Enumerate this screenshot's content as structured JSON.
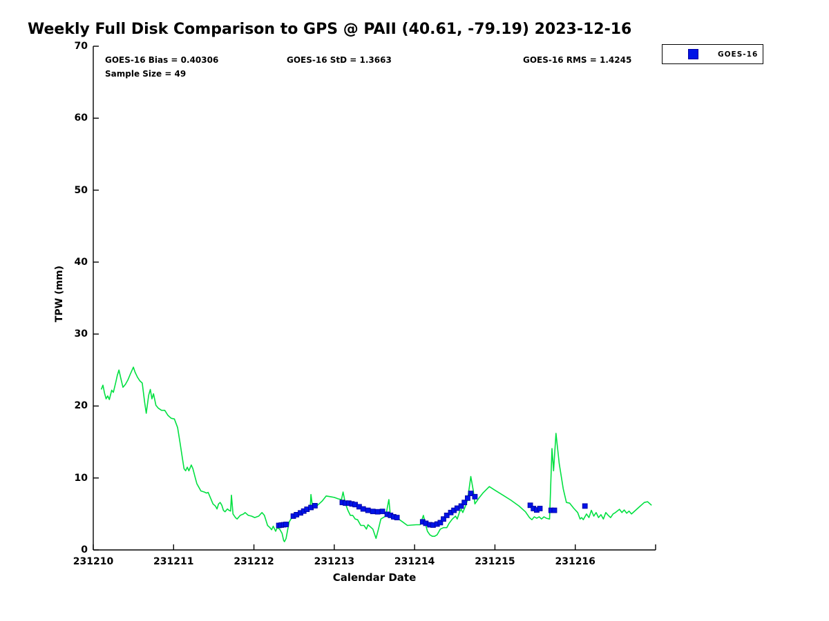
{
  "title": "Weekly Full Disk Comparison to GPS @ PAII (40.61, -79.19) 2023-12-16",
  "stats": {
    "bias": "GOES-16 Bias = 0.40306",
    "std": "GOES-16 StD = 1.3663",
    "rms": "GOES-16 RMS = 1.4245",
    "sample": "Sample Size = 49"
  },
  "legend": {
    "label": "GOES-16"
  },
  "colors": {
    "line": "#00e040",
    "marker": "#0013e6",
    "marker_edge": "#0000a0",
    "axis": "#000000"
  },
  "chart_data": {
    "type": "line",
    "title": "Weekly Full Disk Comparison to GPS @ PAII (40.61, -79.19) 2023-12-16",
    "xlabel": "Calendar Date",
    "ylabel": "TPW (mm)",
    "x_unit": "days since 231210",
    "xlim": [
      0,
      7
    ],
    "ylim": [
      0,
      70
    ],
    "y_ticks": [
      0,
      10,
      20,
      30,
      40,
      50,
      60,
      70
    ],
    "x_ticks": [
      0,
      1,
      2,
      3,
      4,
      5,
      6,
      7
    ],
    "x_tick_labels": [
      "231210",
      "231211",
      "231212",
      "231213",
      "231214",
      "231215",
      "231216",
      ""
    ],
    "grid": false,
    "legend_position": "top-right",
    "series": [
      {
        "name": "GPS",
        "style": "line",
        "points": [
          [
            0.1,
            22.3
          ],
          [
            0.12,
            22.9
          ],
          [
            0.14,
            21.8
          ],
          [
            0.16,
            21.0
          ],
          [
            0.18,
            21.4
          ],
          [
            0.2,
            20.9
          ],
          [
            0.23,
            22.2
          ],
          [
            0.25,
            21.9
          ],
          [
            0.28,
            23.3
          ],
          [
            0.3,
            24.3
          ],
          [
            0.32,
            25.0
          ],
          [
            0.34,
            24.0
          ],
          [
            0.37,
            22.6
          ],
          [
            0.4,
            23.0
          ],
          [
            0.43,
            23.6
          ],
          [
            0.46,
            24.4
          ],
          [
            0.5,
            25.4
          ],
          [
            0.52,
            24.7
          ],
          [
            0.55,
            24.0
          ],
          [
            0.58,
            23.5
          ],
          [
            0.61,
            23.2
          ],
          [
            0.64,
            20.5
          ],
          [
            0.66,
            19.0
          ],
          [
            0.69,
            21.5
          ],
          [
            0.71,
            22.3
          ],
          [
            0.73,
            21.0
          ],
          [
            0.75,
            21.7
          ],
          [
            0.78,
            20.1
          ],
          [
            0.81,
            19.7
          ],
          [
            0.85,
            19.4
          ],
          [
            0.89,
            19.4
          ],
          [
            0.93,
            18.7
          ],
          [
            0.97,
            18.3
          ],
          [
            1.01,
            18.2
          ],
          [
            1.05,
            17.0
          ],
          [
            1.08,
            14.9
          ],
          [
            1.11,
            12.7
          ],
          [
            1.13,
            11.3
          ],
          [
            1.15,
            11.0
          ],
          [
            1.17,
            11.5
          ],
          [
            1.19,
            11.0
          ],
          [
            1.22,
            11.8
          ],
          [
            1.24,
            11.3
          ],
          [
            1.27,
            10.0
          ],
          [
            1.29,
            9.2
          ],
          [
            1.31,
            8.8
          ],
          [
            1.34,
            8.2
          ],
          [
            1.38,
            8.05
          ],
          [
            1.41,
            7.9
          ],
          [
            1.43,
            8.0
          ],
          [
            1.46,
            7.2
          ],
          [
            1.49,
            6.4
          ],
          [
            1.52,
            6.1
          ],
          [
            1.54,
            5.7
          ],
          [
            1.56,
            6.4
          ],
          [
            1.58,
            6.6
          ],
          [
            1.6,
            6.2
          ],
          [
            1.62,
            5.5
          ],
          [
            1.64,
            5.3
          ],
          [
            1.67,
            5.7
          ],
          [
            1.69,
            5.5
          ],
          [
            1.71,
            5.4
          ],
          [
            1.72,
            7.6
          ],
          [
            1.74,
            5.0
          ],
          [
            1.77,
            4.5
          ],
          [
            1.79,
            4.3
          ],
          [
            1.83,
            4.8
          ],
          [
            1.87,
            5.0
          ],
          [
            1.89,
            5.2
          ],
          [
            1.93,
            4.8
          ],
          [
            1.97,
            4.7
          ],
          [
            2.01,
            4.5
          ],
          [
            2.06,
            4.7
          ],
          [
            2.1,
            5.2
          ],
          [
            2.13,
            4.8
          ],
          [
            2.17,
            3.4
          ],
          [
            2.2,
            3.1
          ],
          [
            2.22,
            2.8
          ],
          [
            2.24,
            3.3
          ],
          [
            2.27,
            2.6
          ],
          [
            2.29,
            3.1
          ],
          [
            2.32,
            2.9
          ],
          [
            2.35,
            2.3
          ],
          [
            2.37,
            1.3
          ],
          [
            2.38,
            1.15
          ],
          [
            2.4,
            1.6
          ],
          [
            2.42,
            2.8
          ],
          [
            2.44,
            3.9
          ],
          [
            2.46,
            4.3
          ],
          [
            2.49,
            4.6
          ],
          [
            2.53,
            4.8
          ],
          [
            2.57,
            5.2
          ],
          [
            2.6,
            5.3
          ],
          [
            2.63,
            5.7
          ],
          [
            2.66,
            5.8
          ],
          [
            2.68,
            5.9
          ],
          [
            2.7,
            5.7
          ],
          [
            2.71,
            7.7
          ],
          [
            2.73,
            5.9
          ],
          [
            2.75,
            6.2
          ],
          [
            2.78,
            6.1
          ],
          [
            2.81,
            6.4
          ],
          [
            2.85,
            6.8
          ],
          [
            2.9,
            7.5
          ],
          [
            2.95,
            7.4
          ],
          [
            3.0,
            7.3
          ],
          [
            3.05,
            7.1
          ],
          [
            3.09,
            7.0
          ],
          [
            3.11,
            8.05
          ],
          [
            3.13,
            6.9
          ],
          [
            3.15,
            6.1
          ],
          [
            3.17,
            5.5
          ],
          [
            3.2,
            4.8
          ],
          [
            3.23,
            4.8
          ],
          [
            3.26,
            4.3
          ],
          [
            3.29,
            4.2
          ],
          [
            3.33,
            3.4
          ],
          [
            3.37,
            3.4
          ],
          [
            3.4,
            2.9
          ],
          [
            3.42,
            3.5
          ],
          [
            3.45,
            3.2
          ],
          [
            3.48,
            2.9
          ],
          [
            3.52,
            1.6
          ],
          [
            3.55,
            2.9
          ],
          [
            3.58,
            4.3
          ],
          [
            3.61,
            4.5
          ],
          [
            3.64,
            4.7
          ],
          [
            3.68,
            7.0
          ],
          [
            3.7,
            4.6
          ],
          [
            3.73,
            4.4
          ],
          [
            3.76,
            4.5
          ],
          [
            3.8,
            4.3
          ],
          [
            3.85,
            3.9
          ],
          [
            3.91,
            3.4
          ],
          [
            3.96,
            3.45
          ],
          [
            4.02,
            3.5
          ],
          [
            4.07,
            3.5
          ],
          [
            4.11,
            4.8
          ],
          [
            4.13,
            3.8
          ],
          [
            4.16,
            2.6
          ],
          [
            4.19,
            2.1
          ],
          [
            4.22,
            1.9
          ],
          [
            4.25,
            1.9
          ],
          [
            4.28,
            2.1
          ],
          [
            4.32,
            2.9
          ],
          [
            4.36,
            3.1
          ],
          [
            4.4,
            3.1
          ],
          [
            4.43,
            3.7
          ],
          [
            4.47,
            4.3
          ],
          [
            4.51,
            4.7
          ],
          [
            4.53,
            4.3
          ],
          [
            4.56,
            5.3
          ],
          [
            4.58,
            5.65
          ],
          [
            4.6,
            5.2
          ],
          [
            4.63,
            6.0
          ],
          [
            4.66,
            7.0
          ],
          [
            4.7,
            10.2
          ],
          [
            4.73,
            8.3
          ],
          [
            4.75,
            6.4
          ],
          [
            4.8,
            7.2
          ],
          [
            4.85,
            7.9
          ],
          [
            4.93,
            8.8
          ],
          [
            5.0,
            8.3
          ],
          [
            5.1,
            7.6
          ],
          [
            5.2,
            6.9
          ],
          [
            5.3,
            6.1
          ],
          [
            5.38,
            5.3
          ],
          [
            5.43,
            4.5
          ],
          [
            5.46,
            4.2
          ],
          [
            5.49,
            4.6
          ],
          [
            5.52,
            4.4
          ],
          [
            5.55,
            4.6
          ],
          [
            5.58,
            4.3
          ],
          [
            5.61,
            4.6
          ],
          [
            5.64,
            4.4
          ],
          [
            5.68,
            4.3
          ],
          [
            5.71,
            14.1
          ],
          [
            5.73,
            11.0
          ],
          [
            5.76,
            16.2
          ],
          [
            5.8,
            12.0
          ],
          [
            5.85,
            8.5
          ],
          [
            5.89,
            6.6
          ],
          [
            5.93,
            6.5
          ],
          [
            5.98,
            5.8
          ],
          [
            6.03,
            5.2
          ],
          [
            6.06,
            4.3
          ],
          [
            6.08,
            4.5
          ],
          [
            6.1,
            4.2
          ],
          [
            6.14,
            5.0
          ],
          [
            6.17,
            4.5
          ],
          [
            6.2,
            5.5
          ],
          [
            6.23,
            4.7
          ],
          [
            6.26,
            5.2
          ],
          [
            6.29,
            4.5
          ],
          [
            6.32,
            4.9
          ],
          [
            6.35,
            4.3
          ],
          [
            6.38,
            5.2
          ],
          [
            6.41,
            4.8
          ],
          [
            6.44,
            4.5
          ],
          [
            6.47,
            5.0
          ],
          [
            6.5,
            5.2
          ],
          [
            6.55,
            5.65
          ],
          [
            6.58,
            5.2
          ],
          [
            6.61,
            5.55
          ],
          [
            6.64,
            5.1
          ],
          [
            6.67,
            5.4
          ],
          [
            6.7,
            5.0
          ],
          [
            6.75,
            5.5
          ],
          [
            6.8,
            6.0
          ],
          [
            6.86,
            6.6
          ],
          [
            6.9,
            6.7
          ],
          [
            6.95,
            6.2
          ]
        ]
      },
      {
        "name": "GOES-16",
        "style": "scatter-square",
        "points": [
          [
            2.31,
            3.4
          ],
          [
            2.34,
            3.45
          ],
          [
            2.37,
            3.5
          ],
          [
            2.4,
            3.55
          ],
          [
            2.49,
            4.7
          ],
          [
            2.53,
            4.9
          ],
          [
            2.58,
            5.15
          ],
          [
            2.62,
            5.4
          ],
          [
            2.66,
            5.65
          ],
          [
            2.71,
            5.9
          ],
          [
            2.76,
            6.15
          ],
          [
            3.1,
            6.6
          ],
          [
            3.14,
            6.5
          ],
          [
            3.18,
            6.5
          ],
          [
            3.22,
            6.4
          ],
          [
            3.26,
            6.3
          ],
          [
            3.31,
            6.0
          ],
          [
            3.36,
            5.7
          ],
          [
            3.42,
            5.5
          ],
          [
            3.48,
            5.35
          ],
          [
            3.54,
            5.3
          ],
          [
            3.6,
            5.35
          ],
          [
            3.66,
            4.95
          ],
          [
            3.7,
            4.8
          ],
          [
            3.74,
            4.6
          ],
          [
            3.78,
            4.5
          ],
          [
            4.1,
            3.9
          ],
          [
            4.14,
            3.7
          ],
          [
            4.19,
            3.5
          ],
          [
            4.23,
            3.45
          ],
          [
            4.28,
            3.6
          ],
          [
            4.32,
            3.8
          ],
          [
            4.36,
            4.3
          ],
          [
            4.4,
            4.8
          ],
          [
            4.45,
            5.2
          ],
          [
            4.49,
            5.5
          ],
          [
            4.53,
            5.8
          ],
          [
            4.58,
            6.1
          ],
          [
            4.62,
            6.6
          ],
          [
            4.66,
            7.2
          ],
          [
            4.7,
            7.85
          ],
          [
            4.75,
            7.4
          ],
          [
            5.44,
            6.2
          ],
          [
            5.48,
            5.75
          ],
          [
            5.52,
            5.55
          ],
          [
            5.56,
            5.75
          ],
          [
            5.7,
            5.5
          ],
          [
            5.74,
            5.5
          ],
          [
            6.12,
            6.1
          ]
        ]
      }
    ]
  }
}
